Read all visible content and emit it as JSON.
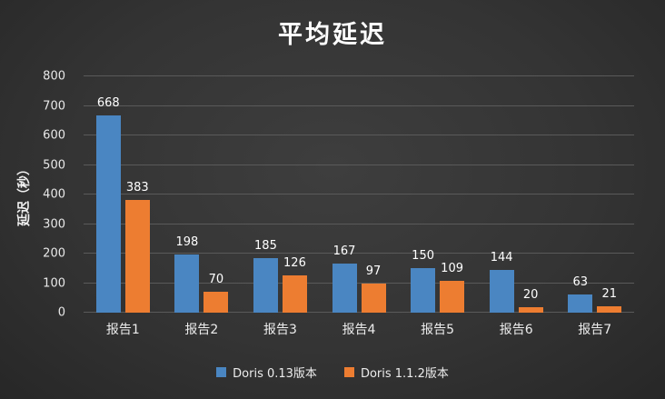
{
  "chart_data": {
    "type": "bar",
    "title": "平均延迟",
    "ylabel": "延迟（秒）",
    "categories": [
      "报告1",
      "报告2",
      "报告3",
      "报告4",
      "报告5",
      "报告6",
      "报告7"
    ],
    "series": [
      {
        "name": "Doris 0.13版本",
        "color": "#4A86C2",
        "values": [
          668,
          198,
          185,
          167,
          150,
          144,
          63
        ]
      },
      {
        "name": "Doris 1.1.2版本",
        "color": "#ED7D31",
        "values": [
          383,
          70,
          126,
          97,
          109,
          20,
          21
        ]
      }
    ],
    "ylim": [
      0,
      800
    ],
    "ytick_step": 100,
    "grid": true,
    "legend_position": "bottom"
  },
  "colors": {
    "background": "#333333",
    "text": "#f0f0f0",
    "gridline": "#5a5a5a",
    "series_blue": "#4A86C2",
    "series_orange": "#ED7D31"
  }
}
